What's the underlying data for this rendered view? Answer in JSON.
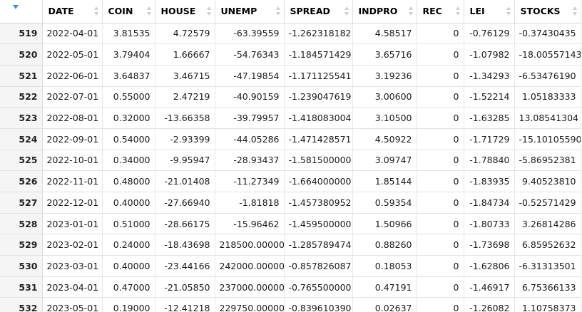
{
  "columns": [
    "",
    "DATE",
    "COIN",
    "HOUSE",
    "UNEMP",
    "SPREAD",
    "INDPRO",
    "REC",
    "LEI",
    "STOCKS"
  ],
  "rows": [
    [
      "519",
      "2022-04-01",
      "3.81535",
      "4.72579",
      "-63.39559",
      "-1.262318182",
      "4.58517",
      "0",
      "-0.76129",
      "-0.37430435"
    ],
    [
      "520",
      "2022-05-01",
      "3.79404",
      "1.66667",
      "-54.76343",
      "-1.184571429",
      "3.65716",
      "0",
      "-1.07982",
      "-18.00557143"
    ],
    [
      "521",
      "2022-06-01",
      "3.64837",
      "3.46715",
      "-47.19854",
      "-1.171125541",
      "3.19236",
      "0",
      "-1.34293",
      "-6.53476190"
    ],
    [
      "522",
      "2022-07-01",
      "0.55000",
      "2.47219",
      "-40.90159",
      "-1.239047619",
      "3.00600",
      "0",
      "-1.52214",
      "1.05183333"
    ],
    [
      "523",
      "2022-08-01",
      "0.32000",
      "-13.66358",
      "-39.79957",
      "-1.418083004",
      "3.10500",
      "0",
      "-1.63285",
      "13.08541304"
    ],
    [
      "524",
      "2022-09-01",
      "0.54000",
      "-2.93399",
      "-44.05286",
      "-1.471428571",
      "4.50922",
      "0",
      "-1.71729",
      "-15.10105590"
    ],
    [
      "525",
      "2022-10-01",
      "0.34000",
      "-9.95947",
      "-28.93437",
      "-1.581500000",
      "3.09747",
      "0",
      "-1.78840",
      "-5.86952381"
    ],
    [
      "526",
      "2022-11-01",
      "0.48000",
      "-21.01408",
      "-11.27349",
      "-1.664000000",
      "1.85144",
      "0",
      "-1.83935",
      "9.40523810"
    ],
    [
      "527",
      "2022-12-01",
      "0.40000",
      "-27.66940",
      "-1.81818",
      "-1.457380952",
      "0.59354",
      "0",
      "-1.84734",
      "-0.52571429"
    ],
    [
      "528",
      "2023-01-01",
      "0.51000",
      "-28.66175",
      "-15.96462",
      "-1.459500000",
      "1.50966",
      "0",
      "-1.80733",
      "3.26814286"
    ],
    [
      "529",
      "2023-02-01",
      "0.24000",
      "-18.43698",
      "218500.00000",
      "-1.285789474",
      "0.88260",
      "0",
      "-1.73698",
      "6.85952632"
    ],
    [
      "530",
      "2023-03-01",
      "0.40000",
      "-23.44166",
      "242000.00000",
      "-0.857826087",
      "0.18053",
      "0",
      "-1.62806",
      "-6.31313501"
    ],
    [
      "531",
      "2023-04-01",
      "0.47000",
      "-21.05850",
      "237000.00000",
      "-0.765500000",
      "0.47191",
      "0",
      "-1.46917",
      "6.75366133"
    ],
    [
      "532",
      "2023-05-01",
      "0.19000",
      "-12.41218",
      "229750.00000",
      "-0.839610390",
      "0.02637",
      "0",
      "-1.26082",
      "1.10758373"
    ]
  ]
}
